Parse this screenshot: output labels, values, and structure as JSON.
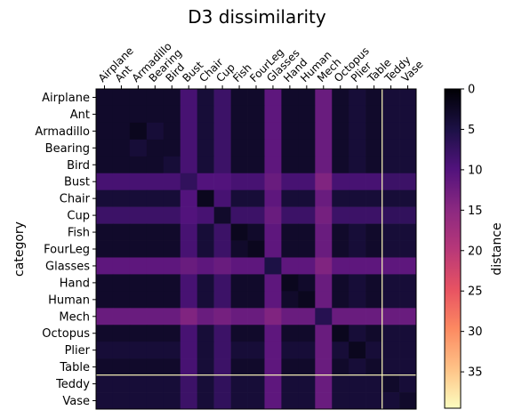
{
  "chart_data": {
    "type": "heatmap",
    "title": "D3 dissimilarity",
    "xlabel": "",
    "ylabel": "category",
    "x_tick_position": "top",
    "categories": [
      "Airplane",
      "Ant",
      "Armadillo",
      "Bearing",
      "Bird",
      "Bust",
      "Chair",
      "Cup",
      "Fish",
      "FourLeg",
      "Glasses",
      "Hand",
      "Human",
      "Mech",
      "Octopus",
      "Plier",
      "Table",
      "Teddy",
      "Vase"
    ],
    "matrix": [
      [
        3,
        3,
        3,
        3,
        3,
        9,
        4,
        8,
        3,
        3,
        11,
        3,
        3,
        12,
        3,
        4,
        3,
        4,
        4
      ],
      [
        3,
        3,
        3,
        3,
        3,
        9,
        4,
        8,
        3,
        3,
        11,
        3,
        3,
        12,
        3,
        4,
        3,
        4,
        4
      ],
      [
        3,
        3,
        2,
        4,
        3,
        9,
        4,
        8,
        3,
        3,
        11,
        3,
        3,
        12,
        3,
        4,
        3,
        4,
        4
      ],
      [
        3,
        3,
        4,
        3,
        3,
        9,
        4,
        8,
        3,
        3,
        11,
        3,
        3,
        12,
        3,
        4,
        3,
        4,
        4
      ],
      [
        3,
        3,
        3,
        3,
        4,
        9,
        4,
        8,
        3,
        3,
        11,
        3,
        3,
        12,
        3,
        4,
        3,
        4,
        4
      ],
      [
        9,
        9,
        9,
        9,
        9,
        7,
        10,
        10,
        9,
        9,
        12,
        9,
        9,
        14,
        9,
        9,
        9,
        8,
        8
      ],
      [
        4,
        4,
        4,
        4,
        4,
        10,
        2,
        9,
        4,
        4,
        11,
        4,
        4,
        12,
        4,
        4,
        4,
        4,
        4
      ],
      [
        8,
        8,
        8,
        8,
        8,
        10,
        9,
        3,
        8,
        8,
        12,
        8,
        8,
        13,
        8,
        8,
        8,
        7,
        7
      ],
      [
        3,
        3,
        3,
        3,
        3,
        9,
        4,
        8,
        2,
        3,
        11,
        3,
        3,
        12,
        3,
        4,
        3,
        4,
        4
      ],
      [
        3,
        3,
        3,
        3,
        3,
        9,
        4,
        8,
        3,
        2,
        11,
        3,
        3,
        12,
        3,
        4,
        3,
        4,
        4
      ],
      [
        11,
        11,
        11,
        11,
        11,
        12,
        11,
        12,
        11,
        11,
        5,
        11,
        11,
        14,
        11,
        11,
        11,
        11,
        11
      ],
      [
        3,
        3,
        3,
        3,
        3,
        9,
        4,
        8,
        3,
        3,
        11,
        2,
        3,
        12,
        3,
        4,
        3,
        4,
        4
      ],
      [
        3,
        3,
        3,
        3,
        3,
        9,
        4,
        8,
        3,
        3,
        11,
        3,
        2,
        12,
        3,
        4,
        3,
        4,
        4
      ],
      [
        12,
        12,
        12,
        12,
        12,
        14,
        12,
        13,
        12,
        12,
        14,
        12,
        12,
        6,
        12,
        12,
        12,
        12,
        12
      ],
      [
        3,
        3,
        3,
        3,
        3,
        9,
        4,
        8,
        3,
        3,
        11,
        3,
        3,
        12,
        2,
        4,
        3,
        4,
        4
      ],
      [
        4,
        4,
        4,
        4,
        4,
        9,
        4,
        8,
        4,
        4,
        11,
        4,
        4,
        12,
        4,
        2,
        4,
        4,
        4
      ],
      [
        3,
        3,
        3,
        3,
        3,
        9,
        4,
        8,
        3,
        3,
        11,
        3,
        3,
        12,
        3,
        4,
        3,
        4,
        4
      ],
      [
        4,
        4,
        4,
        4,
        4,
        8,
        4,
        7,
        4,
        4,
        11,
        4,
        4,
        12,
        4,
        4,
        4,
        3,
        4
      ],
      [
        4,
        4,
        4,
        4,
        4,
        8,
        4,
        7,
        4,
        4,
        11,
        4,
        4,
        12,
        4,
        4,
        4,
        4,
        3
      ]
    ],
    "highlight_lines": {
      "value": 39,
      "row_index": 17,
      "column_index": 17
    },
    "colormap": "magma_r",
    "colorbar": {
      "label": "distance",
      "min": 0,
      "max": 39.5,
      "ticks": [
        0,
        5,
        10,
        15,
        20,
        25,
        30,
        35
      ]
    },
    "grid": false
  }
}
